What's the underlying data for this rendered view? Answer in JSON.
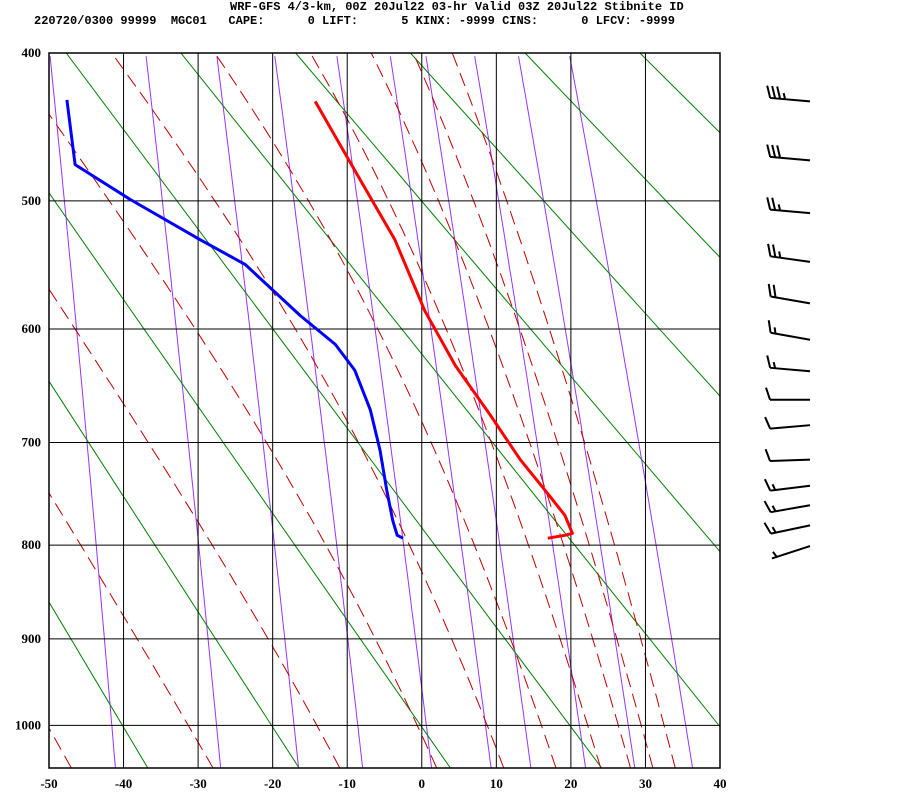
{
  "header": {
    "line1": "WRF-GFS 4/3-km, 00Z 20Jul22 03-hr Valid 03Z 20Jul22 Stibnite ID",
    "line2": "220720/0300 99999  MGC01   CAPE:      0 LIFT:      5 KINX: -9999 CINS:      0 LFCV: -9999"
  },
  "chart_data": {
    "type": "line",
    "subtype": "thermodynamic sounding diagram",
    "xlabel": "",
    "ylabel": "",
    "xlim": [
      -50,
      40
    ],
    "ylim_pressure": [
      1052,
      400
    ],
    "x_ticks": [
      "-50",
      "-40",
      "-30",
      "-20",
      "-10",
      "0",
      "10",
      "20",
      "30",
      "40"
    ],
    "y_ticks": [
      "400",
      "500",
      "600",
      "700",
      "800",
      "900",
      "1000"
    ],
    "grid": true,
    "colors": {
      "temperature": "#ff0000",
      "dewpoint": "#0000ff",
      "dry_adiabat": "#008000",
      "moist_adiabat": "#c00000",
      "mixing_ratio": "#9933ff",
      "grid": "#000000",
      "wind_barb": "#000000"
    },
    "series": [
      {
        "key": "temperature",
        "points": [
          {
            "p": 431,
            "t": -14.3
          },
          {
            "p": 478,
            "t": -9.0
          },
          {
            "p": 529,
            "t": -3.6
          },
          {
            "p": 585,
            "t": 0.4
          },
          {
            "p": 631,
            "t": 4.5
          },
          {
            "p": 675,
            "t": 9.2
          },
          {
            "p": 716,
            "t": 13.2
          },
          {
            "p": 745,
            "t": 16.5
          },
          {
            "p": 770,
            "t": 19.2
          },
          {
            "p": 788,
            "t": 20.2
          },
          {
            "p": 790,
            "t": 19.2
          },
          {
            "p": 793,
            "t": 16.9
          }
        ]
      },
      {
        "key": "dewpoint",
        "points": [
          {
            "p": 430,
            "t": -47.6
          },
          {
            "p": 474,
            "t": -46.5
          },
          {
            "p": 499,
            "t": -39.1
          },
          {
            "p": 529,
            "t": -29.7
          },
          {
            "p": 548,
            "t": -23.7
          },
          {
            "p": 589,
            "t": -16.3
          },
          {
            "p": 613,
            "t": -11.6
          },
          {
            "p": 635,
            "t": -9.0
          },
          {
            "p": 670,
            "t": -6.9
          },
          {
            "p": 707,
            "t": -5.6
          },
          {
            "p": 745,
            "t": -4.7
          },
          {
            "p": 775,
            "t": -3.9
          },
          {
            "p": 790,
            "t": -3.3
          },
          {
            "p": 793,
            "t": -2.5
          }
        ]
      }
    ],
    "dry_adiabats_theta_K": [
      233,
      253,
      273,
      293,
      313,
      333,
      353,
      373,
      393,
      413,
      433
    ],
    "moist_adiabats_t_at_1052": [
      -47,
      -28,
      -11,
      2,
      11,
      18,
      24,
      28,
      31,
      34
    ],
    "mixing_ratio_lines_gkg": [
      0.1,
      0.4,
      1,
      2,
      4,
      7,
      10,
      16,
      24,
      38
    ],
    "winds": [
      {
        "p": 431,
        "dir": 275,
        "kt": 35
      },
      {
        "p": 471,
        "dir": 275,
        "kt": 30
      },
      {
        "p": 509,
        "dir": 275,
        "kt": 25
      },
      {
        "p": 546,
        "dir": 278,
        "kt": 25
      },
      {
        "p": 579,
        "dir": 280,
        "kt": 20
      },
      {
        "p": 609,
        "dir": 280,
        "kt": 15
      },
      {
        "p": 636,
        "dir": 275,
        "kt": 15
      },
      {
        "p": 661,
        "dir": 270,
        "kt": 10
      },
      {
        "p": 684,
        "dir": 265,
        "kt": 10
      },
      {
        "p": 716,
        "dir": 268,
        "kt": 10
      },
      {
        "p": 741,
        "dir": 263,
        "kt": 15
      },
      {
        "p": 760,
        "dir": 260,
        "kt": 15
      },
      {
        "p": 780,
        "dir": 258,
        "kt": 15
      },
      {
        "p": 801,
        "dir": 252,
        "kt": 5
      }
    ]
  }
}
